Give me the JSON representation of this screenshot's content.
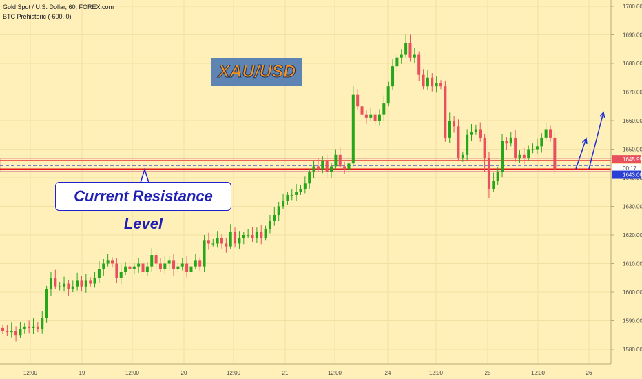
{
  "legend": {
    "line1": "Gold Spot / U.S. Dollar, 60, FOREX.com",
    "line2": "BTC Prehistoric (-600, 0)"
  },
  "annotation_title": "XAU/USD",
  "annotation_callout": "Current Resistance Level",
  "colors": {
    "background": "#ffefb8",
    "up_candle": "#26a61a",
    "down_candle": "#e8505d",
    "resistance_line": "#e01515",
    "zone_border": "#e8a0a0",
    "arrow": "#1b2fd1",
    "price_tag_red": "#e8505d",
    "price_tag_blue": "#2a3fd6"
  },
  "price_tags": {
    "upper": "1645.99",
    "countdown": "00:17",
    "lower": "1643.00"
  },
  "chart_data": {
    "type": "candlestick",
    "ylim": [
      1575,
      1702
    ],
    "y_ticks": [
      1580,
      1590,
      1600,
      1610,
      1620,
      1630,
      1640,
      1650,
      1660,
      1670,
      1680,
      1690,
      1700
    ],
    "x_tick_labels": [
      "12:00",
      "19",
      "12:00",
      "20",
      "12:00",
      "21",
      "12:00",
      "24",
      "12:00",
      "25",
      "12:00",
      "26"
    ],
    "resistance_zone": [
      1643.0,
      1645.99
    ],
    "dashed_level": 1644.3,
    "candles_count": 129,
    "ohlc_description": "Hourly candles rising from ~1586 to ~1648, spike to ~1690, then retracing to ~1643"
  }
}
